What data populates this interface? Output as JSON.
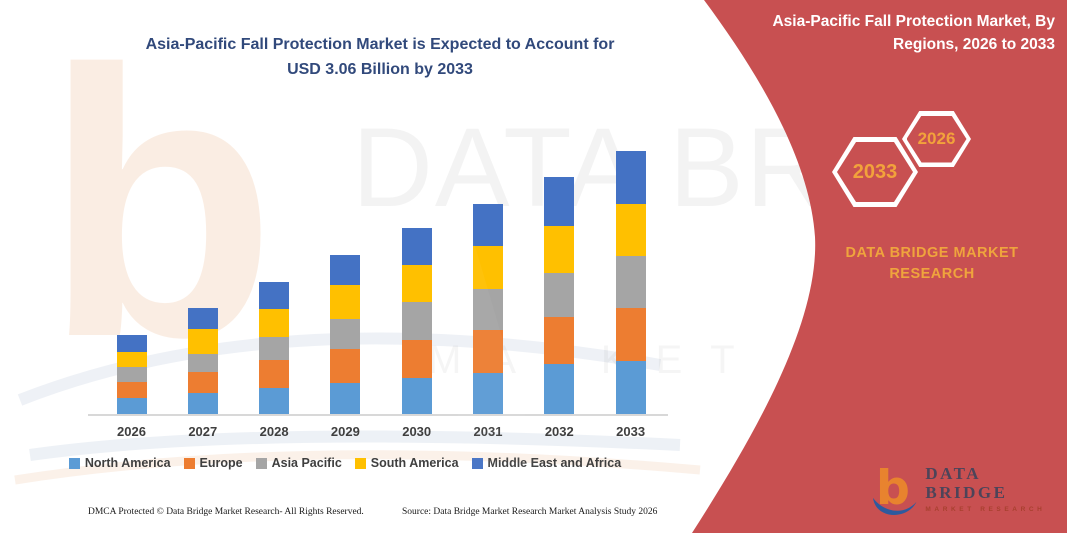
{
  "page": {
    "title_line1": "Asia-Pacific Fall Protection Market is Expected to Account for",
    "title_line2": "USD 3.06 Billion by 2033"
  },
  "banner": {
    "title_line1": "Asia-Pacific Fall Protection Market, By",
    "title_line2": "Regions, 2026 to 2033",
    "hex_back_label": "2033",
    "hex_front_label": "2026",
    "brand_line1": "DATA BRIDGE MARKET",
    "brand_line2": "RESEARCH",
    "ribbon_color": "#c85051",
    "gold_color": "#efa43d"
  },
  "logo": {
    "icon": "data-bridge-b-icon",
    "name": "DATA BRIDGE",
    "sub": "MARKET RESEARCH",
    "orange": "#e8832e",
    "blue": "#2e5a9e"
  },
  "watermark": {
    "b": "b",
    "big": "DATA BRIDGE",
    "sub": "MARKET RESEARCH"
  },
  "footer": {
    "left": "DMCA Protected © Data Bridge Market Research-  All Rights Reserved.",
    "right": "Source: Data Bridge Market Research  Market Analysis Study 2026"
  },
  "chart_data": {
    "type": "bar",
    "stacked": true,
    "title": "Asia-Pacific Fall Protection Market is Expected to Account for USD 3.06 Billion by 2033",
    "unit": "USD Billion",
    "categories": [
      "2026",
      "2027",
      "2028",
      "2029",
      "2030",
      "2031",
      "2032",
      "2033"
    ],
    "series": [
      {
        "name": "North America",
        "color": "#5B9BD5",
        "values": [
          0.2,
          0.25,
          0.31,
          0.37,
          0.43,
          0.49,
          0.59,
          0.62
        ]
      },
      {
        "name": "Europe",
        "color": "#ED7D31",
        "values": [
          0.18,
          0.25,
          0.33,
          0.39,
          0.44,
          0.49,
          0.55,
          0.62
        ]
      },
      {
        "name": "Asia Pacific",
        "color": "#A5A5A5",
        "values": [
          0.18,
          0.21,
          0.26,
          0.35,
          0.44,
          0.48,
          0.5,
          0.6
        ]
      },
      {
        "name": "South America",
        "color": "#FFC000",
        "values": [
          0.17,
          0.29,
          0.33,
          0.4,
          0.43,
          0.5,
          0.55,
          0.6
        ]
      },
      {
        "name": "Middle East and Africa",
        "color": "#4472C4",
        "values": [
          0.2,
          0.24,
          0.31,
          0.34,
          0.43,
          0.48,
          0.57,
          0.62
        ]
      }
    ],
    "totals": [
      0.93,
      1.24,
      1.54,
      1.85,
      2.17,
      2.44,
      2.76,
      3.06
    ],
    "xlabel": "",
    "ylabel": "",
    "y_axis_visible": false,
    "ylim": [
      0,
      3.2
    ],
    "gridlines": false,
    "legend_position": "bottom"
  }
}
